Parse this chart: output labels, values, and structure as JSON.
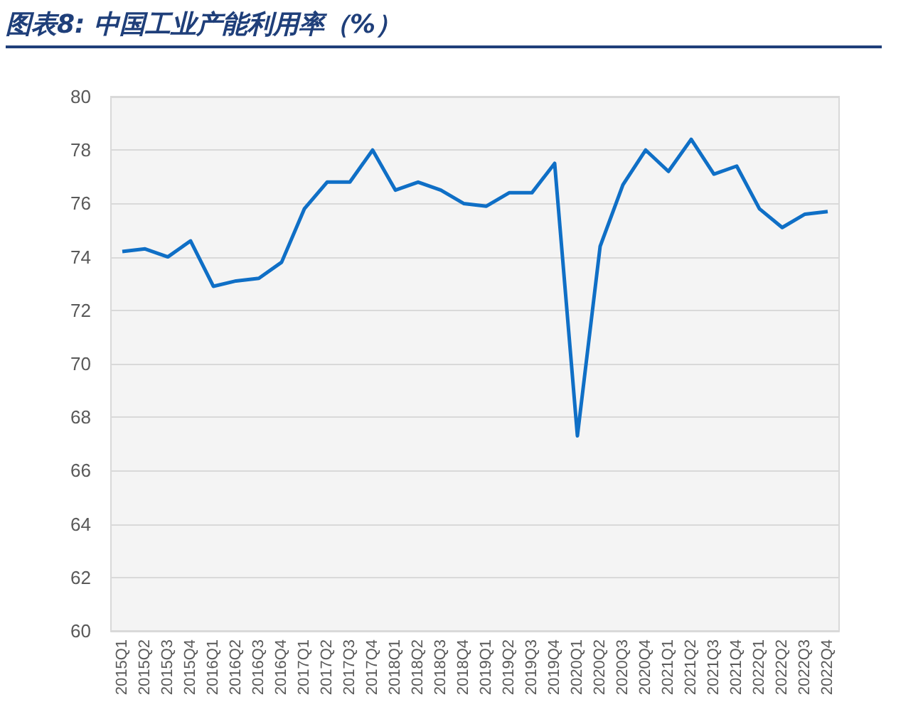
{
  "chart_data": {
    "type": "line",
    "title": "图表8:  中国工业产能利用率（%）",
    "categories": [
      "2015Q1",
      "2015Q2",
      "2015Q3",
      "2015Q4",
      "2016Q1",
      "2016Q2",
      "2016Q3",
      "2016Q4",
      "2017Q1",
      "2017Q2",
      "2017Q3",
      "2017Q4",
      "2018Q1",
      "2018Q2",
      "2018Q3",
      "2018Q4",
      "2019Q1",
      "2019Q2",
      "2019Q3",
      "2019Q4",
      "2020Q1",
      "2020Q2",
      "2020Q3",
      "2020Q4",
      "2021Q1",
      "2021Q2",
      "2021Q3",
      "2021Q4",
      "2022Q1",
      "2022Q2",
      "2022Q3",
      "2022Q4"
    ],
    "series": [
      {
        "color": "#0f6fc6",
        "values": [
          74.2,
          74.3,
          74.0,
          74.6,
          72.9,
          73.1,
          73.2,
          73.8,
          75.8,
          76.8,
          76.8,
          78.0,
          76.5,
          76.8,
          76.5,
          76.0,
          75.9,
          76.4,
          76.4,
          77.5,
          67.3,
          74.4,
          76.7,
          78.0,
          77.2,
          78.4,
          77.1,
          77.4,
          75.8,
          75.1,
          75.6,
          75.7
        ]
      }
    ],
    "ylim": [
      60,
      80
    ],
    "yticks": [
      60,
      62,
      64,
      66,
      68,
      70,
      72,
      74,
      76,
      78,
      80
    ],
    "grid": "y",
    "marker": "none",
    "line_style": "solid"
  }
}
